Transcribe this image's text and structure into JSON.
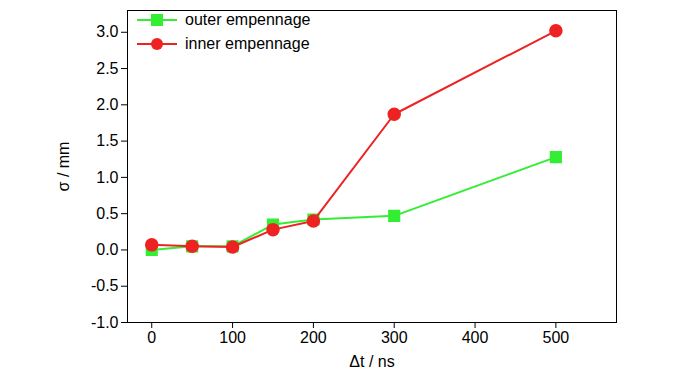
{
  "chart_data": {
    "type": "line",
    "x_label": "Δt / ns",
    "y_label": "σ / mm",
    "x": [
      0,
      50,
      100,
      150,
      200,
      300,
      500
    ],
    "series": [
      {
        "name": "outer empennage",
        "color": "#33ee33",
        "marker": "square",
        "values": [
          0.0,
          0.05,
          0.05,
          0.35,
          0.42,
          0.47,
          1.28
        ]
      },
      {
        "name": "inner empennage",
        "color": "#ee2222",
        "marker": "circle",
        "values": [
          0.07,
          0.05,
          0.04,
          0.28,
          0.4,
          1.87,
          3.02
        ]
      }
    ],
    "xlim": [
      -30,
      575
    ],
    "xticks": [
      0,
      100,
      200,
      300,
      400,
      500
    ],
    "ylim": [
      -1.0,
      3.3
    ],
    "yticks": [
      {
        "value": -1,
        "label": "-1.0"
      },
      -0.5,
      {
        "value": 0,
        "label": "0.0"
      },
      0.5,
      {
        "value": 1,
        "label": "1.0"
      },
      1.5,
      {
        "value": 2,
        "label": "2.0"
      },
      2.5,
      {
        "value": 3,
        "label": "3.0"
      }
    ],
    "legend": "top-left",
    "grid": false
  }
}
